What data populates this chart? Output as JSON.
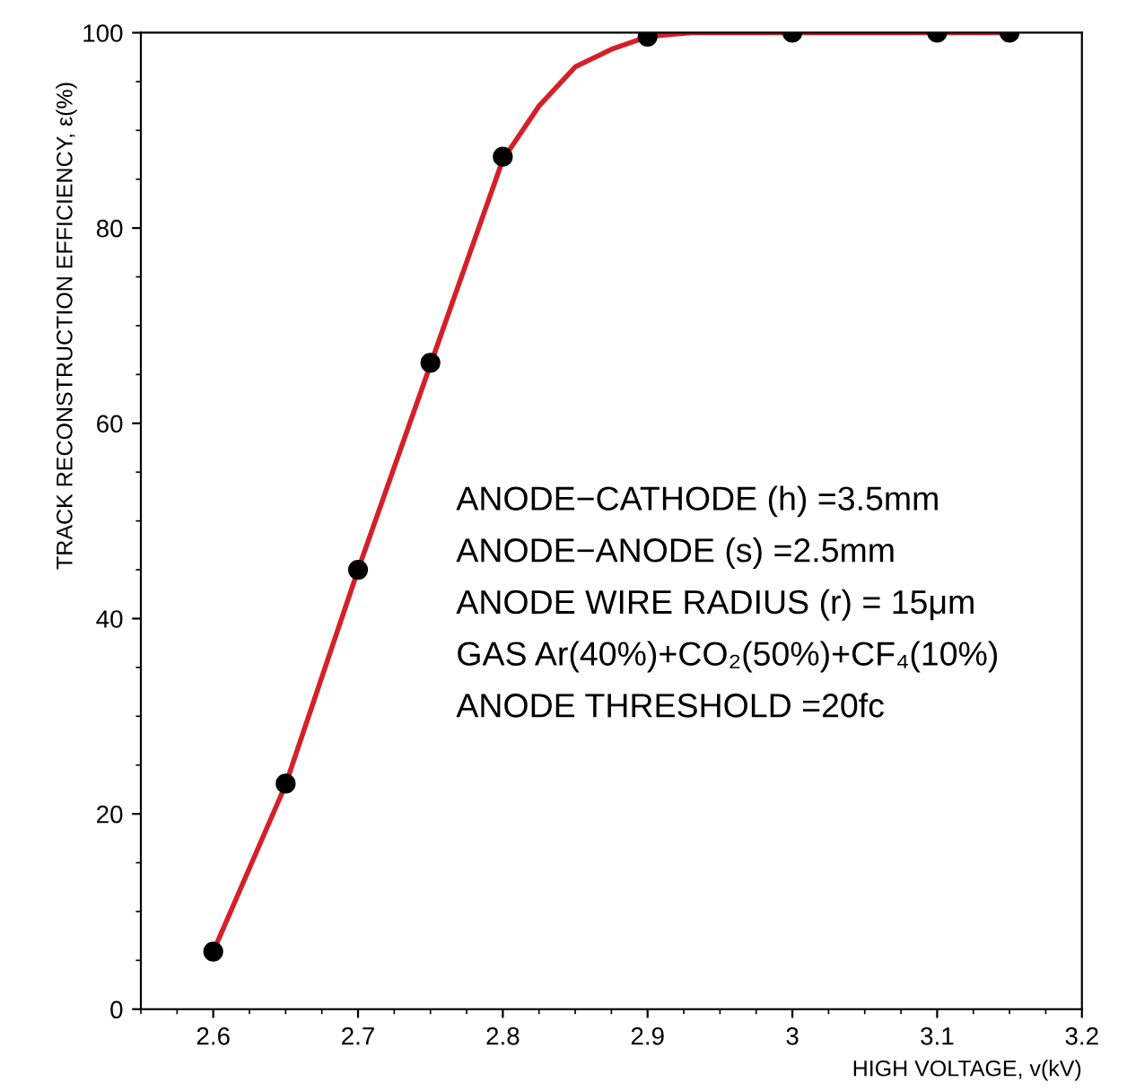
{
  "chart_data": {
    "type": "scatter",
    "xlabel": "HIGH VOLTAGE, v(kV)",
    "ylabel": "TRACK RECONSTRUCTION EFFICIENCY, ε(%)",
    "series": [
      {
        "type": "line",
        "color": "#d42028",
        "x": [
          2.6,
          2.65,
          2.7,
          2.75,
          2.8,
          2.825,
          2.85,
          2.875,
          2.9,
          2.93,
          3.0,
          3.15
        ],
        "values": [
          5.9,
          23,
          45,
          66,
          87,
          92.5,
          96.5,
          98.3,
          99.6,
          100,
          100,
          100
        ]
      },
      {
        "color": "#000000",
        "marker": "circle",
        "x": [
          2.6,
          2.65,
          2.7,
          2.75,
          2.8,
          2.9,
          3.0,
          3.1,
          3.15
        ],
        "values": [
          5.9,
          23.1,
          45,
          66.2,
          87.3,
          99.6,
          100,
          100,
          100
        ]
      }
    ],
    "annotations": [
      "ANODE−CATHODE (h) =3.5mm",
      "ANODE−ANODE (s) =2.5mm",
      "ANODE WIRE RADIUS (r) = 15μm",
      "GAS Ar(40%)+CO₂(50%)+CF₄(10%)",
      "ANODE THRESHOLD =20fc"
    ],
    "xlim": [
      2.55,
      3.2
    ],
    "xticks": [
      2.6,
      2.7,
      2.8,
      2.9,
      3,
      3.1,
      3.2
    ],
    "ylim": [
      0,
      100
    ],
    "yticks": [
      0,
      20,
      40,
      60,
      80,
      100
    ],
    "grid": false,
    "legend": false
  }
}
